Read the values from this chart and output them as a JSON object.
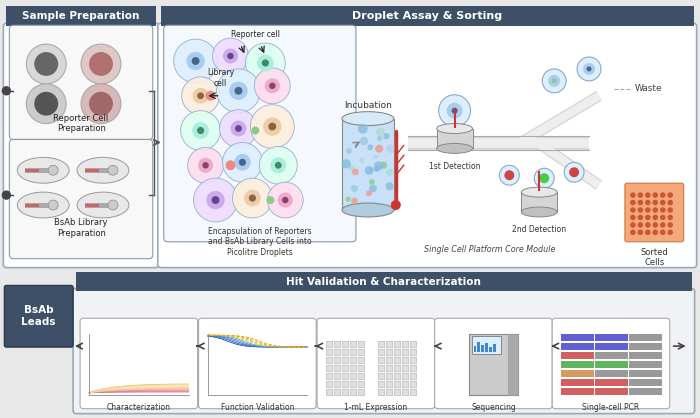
{
  "fig_width": 7.0,
  "fig_height": 4.18,
  "bg_color": "#e8e8e8",
  "header_color": "#3d5068",
  "header_text_color": "#ffffff",
  "section1_title": "Sample Preparation",
  "section2_title": "Droplet Assay & Sorting",
  "section3_title": "Hit Validation & Characterization",
  "label_reporter": "Reporter Cell\nPreparation",
  "label_bsab": "BsAb Library\nPreparation",
  "label_encap": "Encapsulation of Reporters\nand BsAb Library Cells into\nPicolitre Droplets",
  "label_incubation": "Incubation",
  "label_1det": "1st Detection",
  "label_scpm": "Single Cell Platform Core Module",
  "label_2det": "2nd Detection",
  "label_waste": "Waste",
  "label_sorted": "Sorted\nCells",
  "label_char": "Characterization",
  "label_func": "Function Validation",
  "label_expr": "1-mL Expression",
  "label_seq": "Sequencing",
  "label_pcr": "Single-cell PCR",
  "label_leads": "BsAb\nLeads",
  "label_reporter_cell": "Reporter cell",
  "label_library_cell": "Library\ncell"
}
